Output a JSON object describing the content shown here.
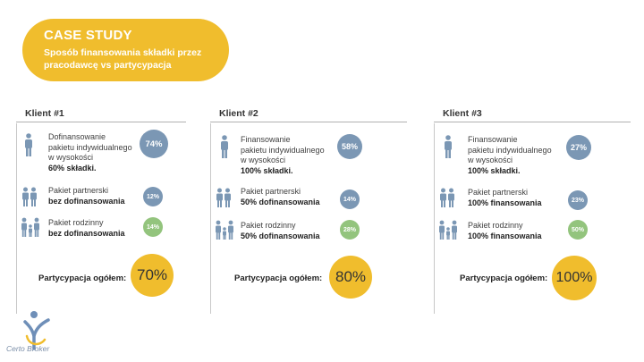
{
  "header": {
    "title": "CASE STUDY",
    "subtitle_line1": "Sposób finansowania składki przez",
    "subtitle_line2": "pracodawcę vs partycypacja"
  },
  "colors": {
    "accent": "#f0bd2d",
    "blue": "#7b97b4",
    "green": "#93c47d"
  },
  "clients": [
    {
      "name": "Klient #1",
      "individual": {
        "lines": [
          "Dofinansowanie",
          "pakietu indywidualnego",
          "w wysokości"
        ],
        "bold": "60% składki.",
        "value": "74%"
      },
      "partner": {
        "line": "Pakiet partnerski",
        "bold": "bez dofinansowania",
        "value": "12%"
      },
      "family": {
        "line": "Pakiet rodzinny",
        "bold": "bez dofinansowania",
        "value": "14%"
      },
      "total_label": "Partycypacja ogółem:",
      "total_value": "70%"
    },
    {
      "name": "Klient #2",
      "individual": {
        "lines": [
          "Finansowanie",
          "pakietu indywidualnego",
          "w wysokości"
        ],
        "bold": "100% składki.",
        "value": "58%"
      },
      "partner": {
        "line": "Pakiet partnerski",
        "bold": "50% dofinansowania",
        "value": "14%"
      },
      "family": {
        "line": "Pakiet rodzinny",
        "bold": "50% dofinansowania",
        "value": "28%"
      },
      "total_label": "Partycypacja ogółem:",
      "total_value": "80%"
    },
    {
      "name": "Klient #3",
      "individual": {
        "lines": [
          "Finansowanie",
          "pakietu indywidualnego",
          "w wysokości"
        ],
        "bold": "100% składki.",
        "value": "27%"
      },
      "partner": {
        "line": "Pakiet partnerski",
        "bold": "100% finansowania",
        "value": "23%"
      },
      "family": {
        "line": "Pakiet rodzinny",
        "bold": "100% finansowania",
        "value": "50%"
      },
      "total_label": "Partycypacja ogółem:",
      "total_value": "100%"
    }
  ],
  "logo": {
    "text": "Certo Broker"
  }
}
